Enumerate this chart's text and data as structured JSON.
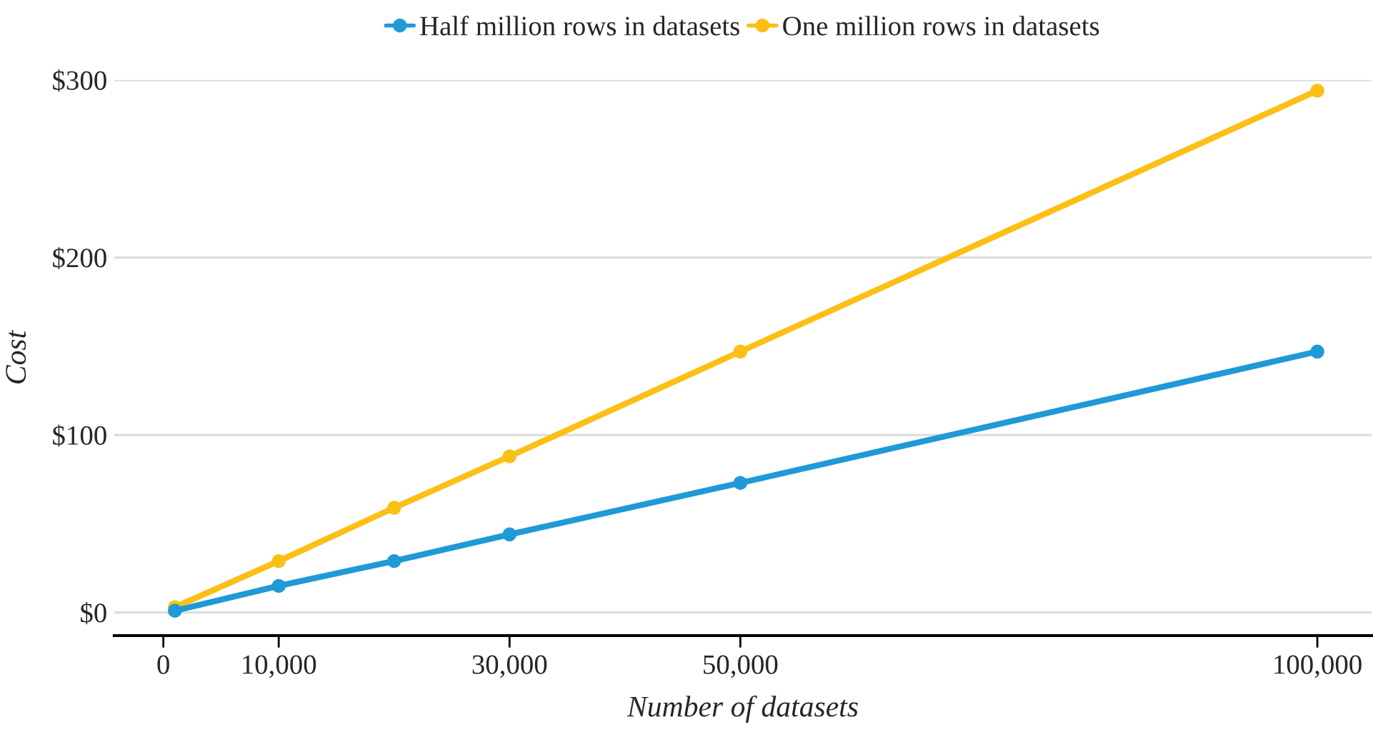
{
  "chart_data": {
    "type": "line",
    "xlabel": "Number of datasets",
    "ylabel": "Cost",
    "x": [
      1000,
      10000,
      20000,
      30000,
      50000,
      100000
    ],
    "series": [
      {
        "name": "Half million rows in datasets",
        "color": "#1f9ad6",
        "values": [
          1,
          15,
          29,
          44,
          73,
          147
        ]
      },
      {
        "name": "One million rows in datasets",
        "color": "#fcbf16",
        "values": [
          3,
          29,
          59,
          88,
          147,
          294
        ]
      }
    ],
    "xlim": [
      -4250,
      104700
    ],
    "xticks": [
      0,
      {
        "value": 10000,
        "label": "10,000"
      },
      {
        "value": 30000,
        "label": "30,000"
      },
      {
        "value": 50000,
        "label": "50,000"
      },
      {
        "value": 100000,
        "label": "100,000"
      }
    ],
    "ylim": [
      -13,
      300
    ],
    "yticks": [
      {
        "value": 0,
        "label": "$0"
      },
      {
        "value": 100,
        "label": "$100"
      },
      {
        "value": 200,
        "label": "$200"
      },
      {
        "value": 300,
        "label": "$300"
      }
    ],
    "grid": "y",
    "legend": "top",
    "marker": "circle",
    "line_style": "solid"
  }
}
